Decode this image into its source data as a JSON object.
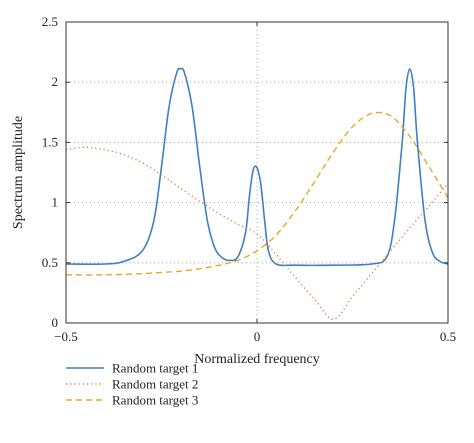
{
  "chart_data": {
    "type": "line",
    "title": "",
    "xlabel": "Normalized frequency",
    "ylabel": "Spectrum amplitude",
    "xlim": [
      -0.5,
      0.5
    ],
    "ylim": [
      0,
      2.5
    ],
    "xticks": [
      -0.5,
      0,
      0.5
    ],
    "xtick_labels": [
      "−0.5",
      "0",
      "0.5"
    ],
    "yticks": [
      0,
      0.5,
      1,
      1.5,
      2,
      2.5
    ],
    "ytick_labels": [
      "0",
      "0.5",
      "1",
      "1.5",
      "2",
      "2.5"
    ],
    "grid": "dotted",
    "legend_position": "below",
    "series": [
      {
        "name": "Random target 1",
        "color": "#3f7fc3",
        "dash": "solid",
        "x": [
          -0.5,
          -0.4,
          -0.35,
          -0.3,
          -0.27,
          -0.25,
          -0.23,
          -0.21,
          -0.2,
          -0.19,
          -0.17,
          -0.15,
          -0.13,
          -0.11,
          -0.09,
          -0.07,
          -0.05,
          -0.03,
          -0.02,
          -0.01,
          0,
          0.01,
          0.02,
          0.03,
          0.05,
          0.1,
          0.2,
          0.3,
          0.34,
          0.36,
          0.38,
          0.39,
          0.4,
          0.41,
          0.42,
          0.44,
          0.46,
          0.48,
          0.5
        ],
        "y": [
          0.49,
          0.49,
          0.51,
          0.6,
          0.85,
          1.3,
          1.8,
          2.08,
          2.11,
          2.08,
          1.8,
          1.3,
          0.85,
          0.62,
          0.54,
          0.52,
          0.55,
          0.75,
          1.05,
          1.27,
          1.29,
          1.15,
          0.85,
          0.6,
          0.49,
          0.48,
          0.48,
          0.49,
          0.55,
          0.85,
          1.5,
          1.95,
          2.11,
          1.95,
          1.5,
          0.85,
          0.58,
          0.51,
          0.49
        ]
      },
      {
        "name": "Random target 2",
        "color": "#d97f4e",
        "dash": "dotted",
        "x": [
          -0.5,
          -0.45,
          -0.4,
          -0.35,
          -0.3,
          -0.25,
          -0.2,
          -0.15,
          -0.1,
          -0.05,
          0,
          0.05,
          0.1,
          0.15,
          0.2,
          0.25,
          0.3,
          0.35,
          0.4,
          0.45,
          0.5
        ],
        "y": [
          1.44,
          1.46,
          1.44,
          1.4,
          1.33,
          1.23,
          1.12,
          1.01,
          0.91,
          0.82,
          0.74,
          0.57,
          0.38,
          0.2,
          0.03,
          0.22,
          0.41,
          0.6,
          0.79,
          0.97,
          1.16
        ]
      },
      {
        "name": "Random target 3",
        "color": "#e8a723",
        "dash": "dashed",
        "x": [
          -0.5,
          -0.4,
          -0.3,
          -0.25,
          -0.2,
          -0.15,
          -0.1,
          -0.05,
          0,
          0.05,
          0.1,
          0.15,
          0.2,
          0.25,
          0.3,
          0.35,
          0.4,
          0.45,
          0.5
        ],
        "y": [
          0.4,
          0.4,
          0.41,
          0.42,
          0.43,
          0.45,
          0.48,
          0.52,
          0.6,
          0.73,
          0.93,
          1.17,
          1.42,
          1.63,
          1.74,
          1.72,
          1.55,
          1.3,
          1.04
        ]
      }
    ]
  }
}
